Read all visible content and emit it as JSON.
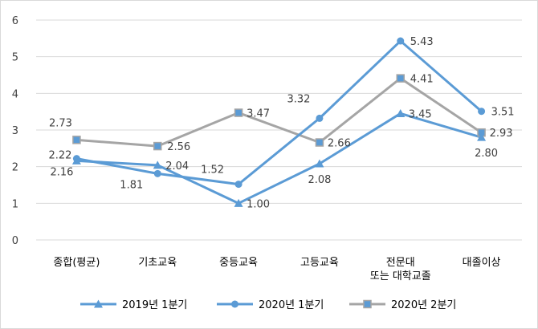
{
  "chart_data": {
    "type": "line",
    "categories": [
      "종합(평균)",
      "기초교육",
      "중등교육",
      "고등교육",
      "전문대\n또는 대학교졸",
      "대졸이상"
    ],
    "ylim": [
      0,
      6
    ],
    "yticks": [
      0,
      1,
      2,
      3,
      4,
      5,
      6
    ],
    "grid": true,
    "legend_position": "bottom",
    "series": [
      {
        "name": "2019년 1분기",
        "marker": "triangle",
        "color": "#5B9BD5",
        "values": [
          2.16,
          2.04,
          1.0,
          2.08,
          3.45,
          2.8
        ],
        "labels": [
          "2.16",
          "2.04",
          "1.00",
          "2.08",
          "3.45",
          "2.80"
        ]
      },
      {
        "name": "2020년 1분기",
        "marker": "circle",
        "color": "#5B9BD5",
        "values": [
          2.22,
          1.81,
          1.52,
          3.32,
          5.43,
          3.51
        ],
        "labels": [
          "2.22",
          "1.81",
          "1.52",
          "3.32",
          "5.43",
          "3.51"
        ]
      },
      {
        "name": "2020년 2분기",
        "marker": "square",
        "color": "#A5A5A5",
        "values": [
          2.73,
          2.56,
          3.47,
          2.66,
          4.41,
          2.93
        ],
        "labels": [
          "2.73",
          "2.56",
          "3.47",
          "2.66",
          "4.41",
          "2.93"
        ]
      }
    ]
  }
}
